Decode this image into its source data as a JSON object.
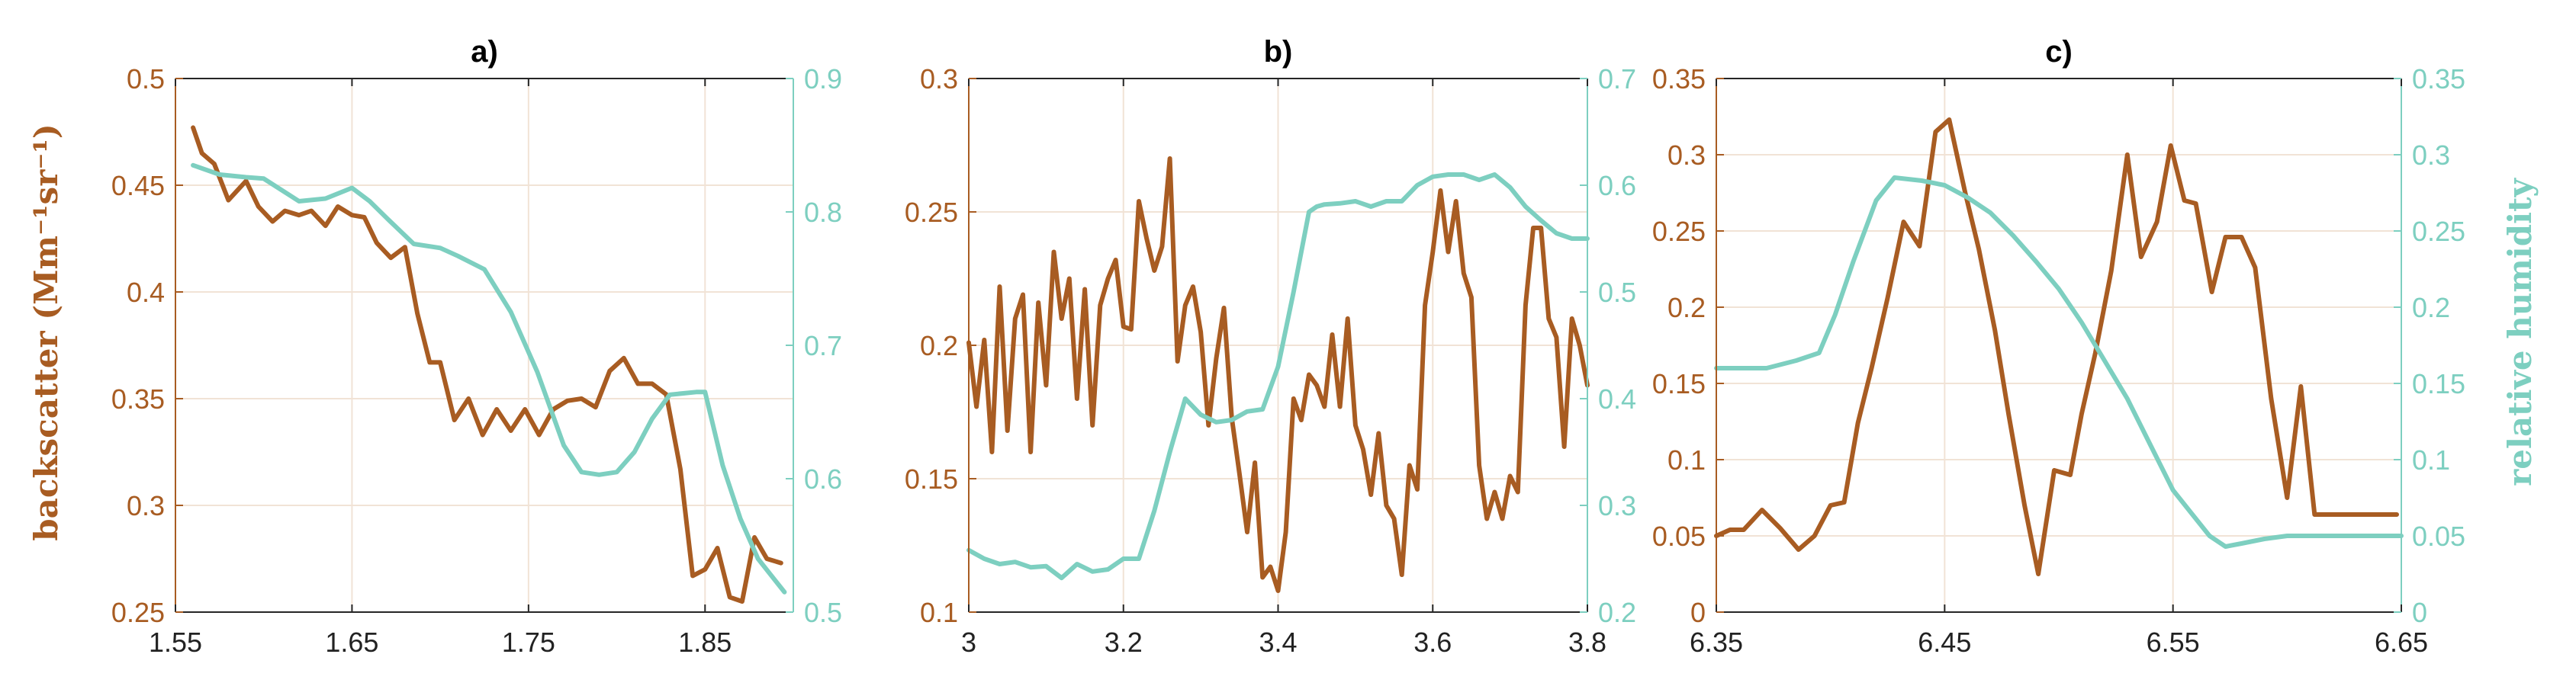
{
  "colors": {
    "backscatter": "#a85c22",
    "humidity": "#7dcfc0",
    "grid": "#f1e3d6",
    "axis": "#262626"
  },
  "labels": {
    "ylabel_left": "backscatter (Mm⁻¹sr⁻¹)",
    "ylabel_right": "relative humidity"
  },
  "chart_data": [
    {
      "type": "line",
      "title": "a)",
      "xlim": [
        1.55,
        1.9
      ],
      "xticks": [
        "1.55",
        "1.65",
        "1.75",
        "1.85"
      ],
      "xtick_values": [
        1.55,
        1.65,
        1.75,
        1.85
      ],
      "ylim_left": [
        0.25,
        0.5
      ],
      "yticks_left": [
        "0.25",
        "0.3",
        "0.35",
        "0.4",
        "0.45",
        "0.5"
      ],
      "ytick_left_values": [
        0.25,
        0.3,
        0.35,
        0.4,
        0.45,
        0.5
      ],
      "ylim_right": [
        0.5,
        0.9
      ],
      "yticks_right": [
        "0.5",
        "0.6",
        "0.7",
        "0.8",
        "0.9"
      ],
      "ytick_right_values": [
        0.5,
        0.6,
        0.7,
        0.8,
        0.9
      ],
      "grid": true,
      "series": [
        {
          "axis": "left",
          "x": [
            1.56,
            1.565,
            1.572,
            1.58,
            1.59,
            1.597,
            1.605,
            1.612,
            1.62,
            1.627,
            1.635,
            1.642,
            1.65,
            1.657,
            1.664,
            1.672,
            1.68,
            1.687,
            1.694,
            1.7,
            1.708,
            1.716,
            1.724,
            1.732,
            1.74,
            1.748,
            1.756,
            1.764,
            1.772,
            1.78,
            1.788,
            1.796,
            1.804,
            1.812,
            1.82,
            1.828,
            1.836,
            1.843,
            1.85,
            1.857,
            1.864,
            1.871,
            1.878,
            1.885,
            1.893
          ],
          "y": [
            0.477,
            0.465,
            0.46,
            0.443,
            0.452,
            0.44,
            0.433,
            0.438,
            0.436,
            0.438,
            0.431,
            0.44,
            0.436,
            0.435,
            0.423,
            0.416,
            0.421,
            0.39,
            0.367,
            0.367,
            0.34,
            0.35,
            0.333,
            0.345,
            0.335,
            0.345,
            0.333,
            0.345,
            0.349,
            0.35,
            0.346,
            0.363,
            0.369,
            0.357,
            0.357,
            0.352,
            0.317,
            0.267,
            0.27,
            0.28,
            0.257,
            0.255,
            0.285,
            0.275,
            0.273
          ]
        },
        {
          "axis": "right",
          "x": [
            1.56,
            1.575,
            1.59,
            1.6,
            1.62,
            1.635,
            1.65,
            1.66,
            1.67,
            1.685,
            1.7,
            1.71,
            1.725,
            1.74,
            1.755,
            1.77,
            1.78,
            1.79,
            1.8,
            1.81,
            1.82,
            1.83,
            1.845,
            1.85,
            1.86,
            1.87,
            1.88,
            1.895
          ],
          "y": [
            0.835,
            0.828,
            0.826,
            0.825,
            0.808,
            0.81,
            0.818,
            0.808,
            0.795,
            0.776,
            0.773,
            0.767,
            0.757,
            0.725,
            0.68,
            0.625,
            0.605,
            0.603,
            0.605,
            0.62,
            0.645,
            0.663,
            0.665,
            0.665,
            0.61,
            0.57,
            0.54,
            0.515
          ]
        }
      ]
    },
    {
      "type": "line",
      "title": "b)",
      "xlim": [
        3.0,
        3.8
      ],
      "xticks": [
        "3",
        "3.2",
        "3.4",
        "3.6",
        "3.8"
      ],
      "xtick_values": [
        3.0,
        3.2,
        3.4,
        3.6,
        3.8
      ],
      "ylim_left": [
        0.1,
        0.3
      ],
      "yticks_left": [
        "0.1",
        "0.15",
        "0.2",
        "0.25",
        "0.3"
      ],
      "ytick_left_values": [
        0.1,
        0.15,
        0.2,
        0.25,
        0.3
      ],
      "ylim_right": [
        0.2,
        0.7
      ],
      "yticks_right": [
        "0.2",
        "0.3",
        "0.4",
        "0.5",
        "0.6",
        "0.7"
      ],
      "ytick_right_values": [
        0.2,
        0.3,
        0.4,
        0.5,
        0.6,
        0.7
      ],
      "grid": true,
      "series": [
        {
          "axis": "left",
          "x": [
            3.0,
            3.01,
            3.02,
            3.03,
            3.04,
            3.05,
            3.06,
            3.07,
            3.08,
            3.09,
            3.1,
            3.11,
            3.12,
            3.13,
            3.14,
            3.15,
            3.16,
            3.17,
            3.18,
            3.19,
            3.2,
            3.21,
            3.22,
            3.23,
            3.24,
            3.25,
            3.26,
            3.27,
            3.28,
            3.29,
            3.3,
            3.31,
            3.32,
            3.33,
            3.34,
            3.35,
            3.36,
            3.37,
            3.38,
            3.39,
            3.4,
            3.41,
            3.42,
            3.43,
            3.44,
            3.45,
            3.46,
            3.47,
            3.48,
            3.49,
            3.5,
            3.51,
            3.52,
            3.53,
            3.54,
            3.55,
            3.56,
            3.57,
            3.58,
            3.59,
            3.6,
            3.61,
            3.62,
            3.63,
            3.64,
            3.65,
            3.66,
            3.67,
            3.68,
            3.69,
            3.7,
            3.71,
            3.72,
            3.73,
            3.74,
            3.75,
            3.76,
            3.77,
            3.78,
            3.79,
            3.8
          ],
          "y": [
            0.201,
            0.177,
            0.202,
            0.16,
            0.222,
            0.168,
            0.21,
            0.219,
            0.16,
            0.216,
            0.185,
            0.235,
            0.21,
            0.225,
            0.18,
            0.221,
            0.17,
            0.215,
            0.225,
            0.232,
            0.207,
            0.206,
            0.254,
            0.24,
            0.228,
            0.237,
            0.27,
            0.194,
            0.215,
            0.222,
            0.205,
            0.17,
            0.195,
            0.214,
            0.173,
            0.152,
            0.13,
            0.156,
            0.113,
            0.117,
            0.108,
            0.13,
            0.18,
            0.172,
            0.189,
            0.185,
            0.177,
            0.204,
            0.177,
            0.21,
            0.17,
            0.161,
            0.144,
            0.167,
            0.14,
            0.135,
            0.114,
            0.155,
            0.146,
            0.215,
            0.235,
            0.258,
            0.235,
            0.254,
            0.227,
            0.218,
            0.155,
            0.135,
            0.145,
            0.135,
            0.151,
            0.145,
            0.215,
            0.244,
            0.244,
            0.21,
            0.203,
            0.162,
            0.21,
            0.2,
            0.185
          ]
        },
        {
          "axis": "right",
          "x": [
            3.0,
            3.02,
            3.04,
            3.06,
            3.08,
            3.1,
            3.12,
            3.14,
            3.16,
            3.18,
            3.2,
            3.22,
            3.24,
            3.26,
            3.28,
            3.3,
            3.32,
            3.34,
            3.36,
            3.38,
            3.4,
            3.42,
            3.44,
            3.45,
            3.46,
            3.48,
            3.5,
            3.52,
            3.54,
            3.56,
            3.58,
            3.6,
            3.62,
            3.64,
            3.66,
            3.68,
            3.7,
            3.72,
            3.74,
            3.76,
            3.78,
            3.8
          ],
          "y": [
            0.258,
            0.25,
            0.245,
            0.247,
            0.242,
            0.243,
            0.232,
            0.245,
            0.238,
            0.24,
            0.25,
            0.25,
            0.295,
            0.35,
            0.4,
            0.385,
            0.378,
            0.38,
            0.388,
            0.39,
            0.43,
            0.5,
            0.575,
            0.58,
            0.582,
            0.583,
            0.585,
            0.58,
            0.585,
            0.585,
            0.6,
            0.608,
            0.61,
            0.61,
            0.605,
            0.61,
            0.598,
            0.58,
            0.567,
            0.555,
            0.55,
            0.55
          ]
        }
      ]
    },
    {
      "type": "line",
      "title": "c)",
      "xlim": [
        6.35,
        6.65
      ],
      "xticks": [
        "6.35",
        "6.45",
        "6.55",
        "6.65"
      ],
      "xtick_values": [
        6.35,
        6.45,
        6.55,
        6.65
      ],
      "ylim_left": [
        0,
        0.35
      ],
      "yticks_left": [
        "0",
        "0.05",
        "0.1",
        "0.15",
        "0.2",
        "0.25",
        "0.3",
        "0.35"
      ],
      "ytick_left_values": [
        0,
        0.05,
        0.1,
        0.15,
        0.2,
        0.25,
        0.3,
        0.35
      ],
      "ylim_right": [
        0,
        0.35
      ],
      "yticks_right": [
        "0",
        "0.05",
        "0.1",
        "0.15",
        "0.2",
        "0.25",
        "0.3",
        "0.35"
      ],
      "ytick_right_values": [
        0,
        0.05,
        0.1,
        0.15,
        0.2,
        0.25,
        0.3,
        0.35
      ],
      "grid": true,
      "series": [
        {
          "axis": "left",
          "x": [
            6.35,
            6.356,
            6.362,
            6.37,
            6.378,
            6.386,
            6.393,
            6.4,
            6.406,
            6.412,
            6.418,
            6.425,
            6.432,
            6.439,
            6.446,
            6.452,
            6.459,
            6.465,
            6.472,
            6.478,
            6.485,
            6.491,
            6.498,
            6.505,
            6.51,
            6.516,
            6.523,
            6.53,
            6.536,
            6.543,
            6.549,
            6.555,
            6.56,
            6.567,
            6.573,
            6.58,
            6.586,
            6.593,
            6.6,
            6.606,
            6.612,
            6.618,
            6.625,
            6.632,
            6.64,
            6.648
          ],
          "y": [
            0.05,
            0.054,
            0.054,
            0.067,
            0.055,
            0.041,
            0.05,
            0.07,
            0.072,
            0.124,
            0.16,
            0.206,
            0.256,
            0.24,
            0.315,
            0.323,
            0.275,
            0.238,
            0.185,
            0.13,
            0.07,
            0.025,
            0.093,
            0.09,
            0.13,
            0.17,
            0.224,
            0.3,
            0.233,
            0.256,
            0.306,
            0.27,
            0.268,
            0.21,
            0.246,
            0.246,
            0.226,
            0.14,
            0.075,
            0.148,
            0.064,
            0.064,
            0.064,
            0.064,
            0.064,
            0.064
          ]
        },
        {
          "axis": "right",
          "x": [
            6.35,
            6.36,
            6.372,
            6.385,
            6.395,
            6.402,
            6.41,
            6.42,
            6.428,
            6.44,
            6.45,
            6.46,
            6.47,
            6.48,
            6.49,
            6.5,
            6.51,
            6.52,
            6.53,
            6.54,
            6.55,
            6.558,
            6.566,
            6.573,
            6.58,
            6.59,
            6.6,
            6.61,
            6.62,
            6.63,
            6.64,
            6.65
          ],
          "y": [
            0.16,
            0.16,
            0.16,
            0.165,
            0.17,
            0.195,
            0.23,
            0.27,
            0.285,
            0.283,
            0.28,
            0.272,
            0.262,
            0.247,
            0.23,
            0.212,
            0.19,
            0.165,
            0.14,
            0.11,
            0.08,
            0.065,
            0.05,
            0.043,
            0.045,
            0.048,
            0.05,
            0.05,
            0.05,
            0.05,
            0.05,
            0.05
          ]
        }
      ]
    }
  ]
}
